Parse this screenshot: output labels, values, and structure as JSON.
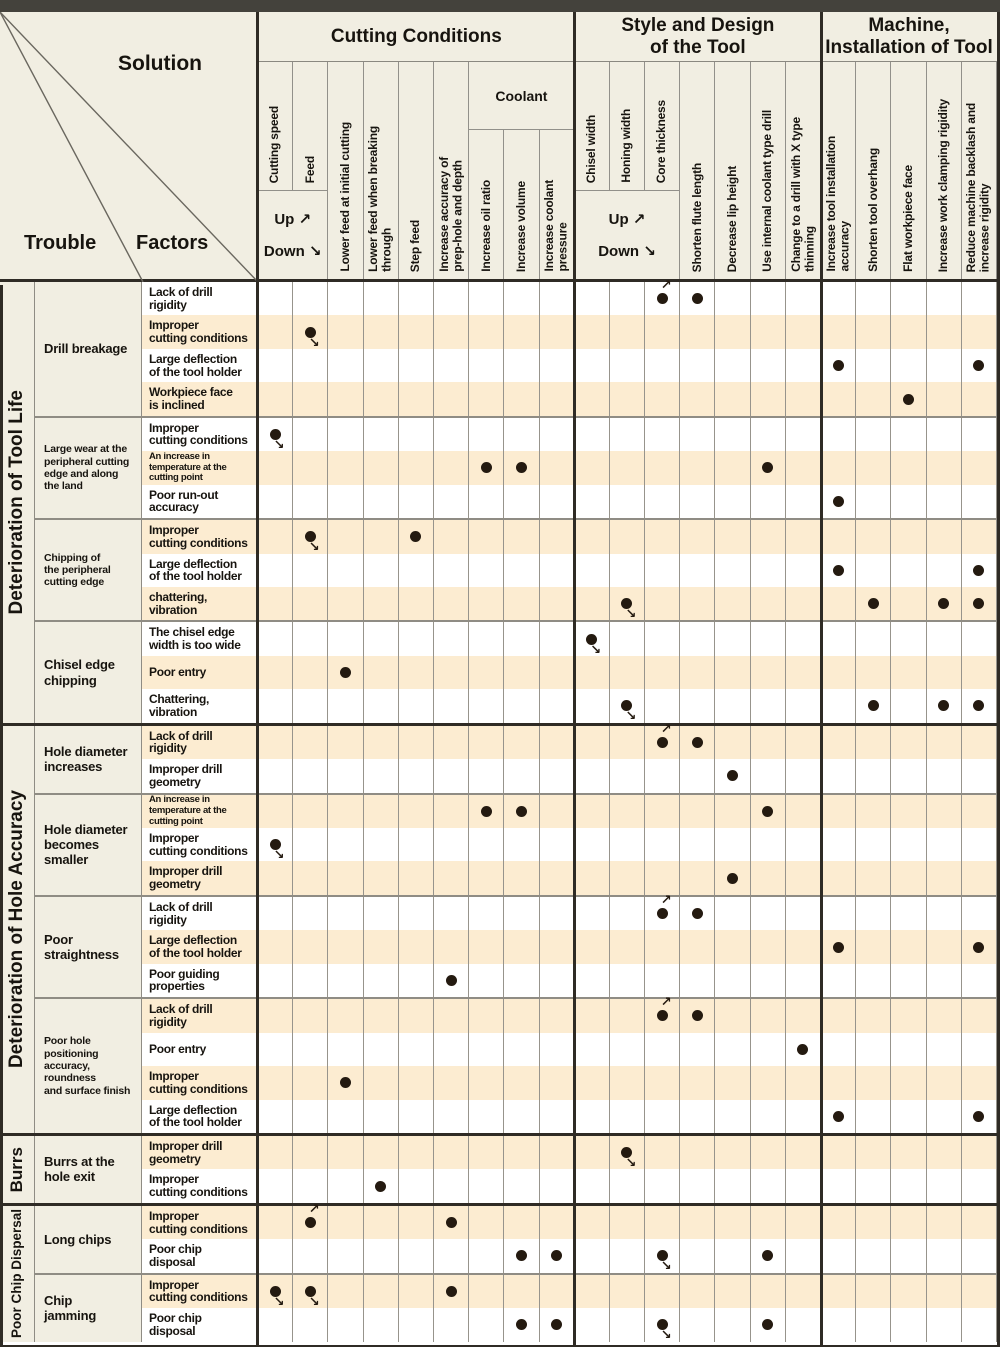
{
  "corner": {
    "solution": "Solution",
    "trouble": "Trouble",
    "factors": "Factors"
  },
  "header": {
    "updown": {
      "up": "Up",
      "down": "Down",
      "up_arrow": "↗",
      "down_arrow": "↘"
    },
    "groups": [
      {
        "label": "Cutting Conditions",
        "start": 0,
        "end": 8,
        "blocks": [
          {
            "type": "updown",
            "cols": [
              0,
              1
            ]
          },
          {
            "type": "col",
            "col": 2
          },
          {
            "type": "col",
            "col": 3
          },
          {
            "type": "col",
            "col": 4
          },
          {
            "type": "col",
            "col": 5
          },
          {
            "type": "sub",
            "label": "Coolant",
            "cols": [
              6,
              7,
              8
            ]
          }
        ]
      },
      {
        "label": "Style and Design\nof the Tool",
        "start": 9,
        "end": 15,
        "blocks": [
          {
            "type": "updown",
            "cols": [
              9,
              10,
              11
            ]
          },
          {
            "type": "col",
            "col": 12
          },
          {
            "type": "col",
            "col": 13
          },
          {
            "type": "col",
            "col": 14
          },
          {
            "type": "col",
            "col": 15
          }
        ]
      },
      {
        "label": "Machine,\nInstallation of Tool",
        "start": 16,
        "end": 20,
        "blocks": [
          {
            "type": "col",
            "col": 16
          },
          {
            "type": "col",
            "col": 17
          },
          {
            "type": "col",
            "col": 18
          },
          {
            "type": "col",
            "col": 19
          },
          {
            "type": "col",
            "col": 20
          }
        ]
      }
    ]
  },
  "columns": [
    "Cutting speed",
    "Feed",
    "Lower feed at initial cutting",
    "Lower feed when breaking\nthrough",
    "Step feed",
    "Increase accuracy of\nprep-hole and depth",
    "Increase oil ratio",
    "Increase volume",
    "Increase coolant\npressure",
    "Chisel width",
    "Honing width",
    "Core thickness",
    "Shorten flute length",
    "Decrease lip height",
    "Use internal coolant type drill",
    "Change to a drill with X type\nthinning",
    "Increase tool installation\naccuracy",
    "Shorten tool overhang",
    "Flat workpiece face",
    "Increase work clamping rigidity",
    "Reduce machine backlash and\nincrease rigidity"
  ],
  "sections": [
    {
      "label": "Deterioration of Tool Life",
      "troubles": [
        {
          "label": "Drill breakage",
          "factors": [
            {
              "label": "Lack of drill\nrigidity",
              "dots": [
                {
                  "c": 11,
                  "a": "up"
                },
                {
                  "c": 12
                }
              ]
            },
            {
              "label": "Improper\ncutting conditions",
              "dots": [
                {
                  "c": 1,
                  "a": "down"
                }
              ]
            },
            {
              "label": "Large deflection\nof the tool holder",
              "dots": [
                {
                  "c": 16
                },
                {
                  "c": 20
                }
              ]
            },
            {
              "label": "Workpiece face\nis inclined",
              "dots": [
                {
                  "c": 18
                }
              ]
            }
          ]
        },
        {
          "label": "Large wear at the\nperipheral cutting\nedge and along\nthe land",
          "factors": [
            {
              "label": "Improper\ncutting conditions",
              "dots": [
                {
                  "c": 0,
                  "a": "down"
                }
              ]
            },
            {
              "label": "An increase in\ntemperature at the\ncutting point",
              "dots": [
                {
                  "c": 6
                },
                {
                  "c": 7
                },
                {
                  "c": 14
                }
              ]
            },
            {
              "label": "Poor run-out\naccuracy",
              "dots": [
                {
                  "c": 16
                }
              ]
            }
          ]
        },
        {
          "label": "Chipping of\nthe peripheral\ncutting edge",
          "factors": [
            {
              "label": "Improper\ncutting conditions",
              "dots": [
                {
                  "c": 1,
                  "a": "down"
                },
                {
                  "c": 4
                }
              ]
            },
            {
              "label": "Large deflection\nof the tool holder",
              "dots": [
                {
                  "c": 16
                },
                {
                  "c": 20
                }
              ]
            },
            {
              "label": "chattering,\nvibration",
              "dots": [
                {
                  "c": 10,
                  "a": "down"
                },
                {
                  "c": 17
                },
                {
                  "c": 19
                },
                {
                  "c": 20
                }
              ]
            }
          ]
        },
        {
          "label": "Chisel edge\nchipping",
          "factors": [
            {
              "label": "The chisel edge\nwidth is too wide",
              "dots": [
                {
                  "c": 9,
                  "a": "down"
                }
              ]
            },
            {
              "label": "Poor entry",
              "dots": [
                {
                  "c": 2
                }
              ]
            },
            {
              "label": "Chattering,\nvibration",
              "dots": [
                {
                  "c": 10,
                  "a": "down"
                },
                {
                  "c": 17
                },
                {
                  "c": 19
                },
                {
                  "c": 20
                }
              ]
            }
          ]
        }
      ]
    },
    {
      "label": "Deterioration of Hole Accuracy",
      "troubles": [
        {
          "label": "Hole diameter\nincreases",
          "factors": [
            {
              "label": "Lack of drill\nrigidity",
              "dots": [
                {
                  "c": 11,
                  "a": "up"
                },
                {
                  "c": 12
                }
              ]
            },
            {
              "label": "Improper drill\ngeometry",
              "dots": [
                {
                  "c": 13
                }
              ]
            }
          ]
        },
        {
          "label": "Hole diameter\nbecomes\nsmaller",
          "factors": [
            {
              "label": "An increase in\ntemperature at the\ncutting point",
              "dots": [
                {
                  "c": 6
                },
                {
                  "c": 7
                },
                {
                  "c": 14
                }
              ]
            },
            {
              "label": "Improper\ncutting conditions",
              "dots": [
                {
                  "c": 0,
                  "a": "down"
                }
              ]
            },
            {
              "label": "Improper drill\ngeometry",
              "dots": [
                {
                  "c": 13
                }
              ]
            }
          ]
        },
        {
          "label": "Poor\nstraightness",
          "factors": [
            {
              "label": "Lack of drill\nrigidity",
              "dots": [
                {
                  "c": 11,
                  "a": "up"
                },
                {
                  "c": 12
                }
              ]
            },
            {
              "label": "Large deflection\nof the tool holder",
              "dots": [
                {
                  "c": 16
                },
                {
                  "c": 20
                }
              ]
            },
            {
              "label": "Poor guiding\nproperties",
              "dots": [
                {
                  "c": 5
                }
              ]
            }
          ]
        },
        {
          "label": "Poor hole positioning\naccuracy, roundness\nand surface finish",
          "factors": [
            {
              "label": "Lack of drill\nrigidity",
              "dots": [
                {
                  "c": 11,
                  "a": "up"
                },
                {
                  "c": 12
                }
              ]
            },
            {
              "label": "Poor entry",
              "dots": [
                {
                  "c": 15
                }
              ]
            },
            {
              "label": "Improper\ncutting conditions",
              "dots": [
                {
                  "c": 2
                }
              ]
            },
            {
              "label": "Large deflection\nof the tool holder",
              "dots": [
                {
                  "c": 16
                },
                {
                  "c": 20
                }
              ]
            }
          ]
        }
      ]
    },
    {
      "label": "Burrs",
      "troubles": [
        {
          "label": "Burrs at the\nhole exit",
          "factors": [
            {
              "label": "Improper drill\ngeometry",
              "dots": [
                {
                  "c": 10,
                  "a": "down"
                }
              ]
            },
            {
              "label": "Improper\ncutting conditions",
              "dots": [
                {
                  "c": 3
                }
              ]
            }
          ]
        }
      ]
    },
    {
      "label": "Poor Chip Dispersal",
      "troubles": [
        {
          "label": "Long chips",
          "factors": [
            {
              "label": "Improper\ncutting conditions",
              "dots": [
                {
                  "c": 1,
                  "a": "up"
                },
                {
                  "c": 5
                }
              ]
            },
            {
              "label": "Poor chip\ndisposal",
              "dots": [
                {
                  "c": 7
                },
                {
                  "c": 8
                },
                {
                  "c": 11,
                  "a": "down"
                },
                {
                  "c": 14
                }
              ]
            }
          ]
        },
        {
          "label": "Chip\njamming",
          "factors": [
            {
              "label": "Improper\ncutting conditions",
              "dots": [
                {
                  "c": 0,
                  "a": "down"
                },
                {
                  "c": 1,
                  "a": "down"
                },
                {
                  "c": 5
                }
              ]
            },
            {
              "label": "Poor chip\ndisposal",
              "dots": [
                {
                  "c": 7
                },
                {
                  "c": 8
                },
                {
                  "c": 11,
                  "a": "down"
                },
                {
                  "c": 14
                }
              ]
            }
          ]
        }
      ]
    }
  ]
}
